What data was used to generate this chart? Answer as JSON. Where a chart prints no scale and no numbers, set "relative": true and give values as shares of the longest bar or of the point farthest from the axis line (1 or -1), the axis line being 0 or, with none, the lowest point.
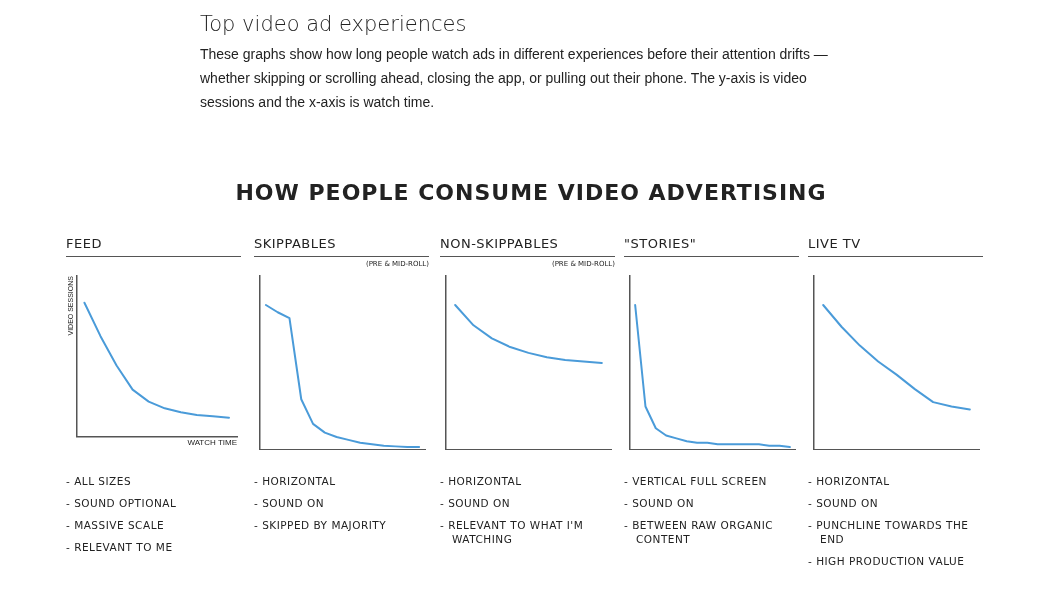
{
  "chart_data": [
    {
      "type": "other",
      "title": "Top video ad experiences",
      "subtitle": "These graphs show how long people watch ads in different experiences before their attention drifts —whether skipping or scrolling ahead, closing the app, or pulling out their phone. The y-axis is video sessions and the x-axis is watch time.",
      "annotations": [
        "HOW PEOPLE CONSUME VIDEO ADVERTISING"
      ]
    },
    {
      "type": "line",
      "title": "FEED",
      "xlabel": "WATCH TIME",
      "ylabel": "VIDEO SESSIONS",
      "relative": true,
      "marker": "none",
      "categories": [
        null,
        null,
        null,
        null,
        null,
        null,
        null,
        null,
        null,
        null
      ],
      "series": [
        {
          "color": "#4a9bd9",
          "values": [
            1,
            0.75,
            0.53,
            0.35,
            0.26,
            0.21,
            0.18,
            0.16,
            0.15,
            0.14
          ]
        }
      ],
      "annotations": [
        "- ALL SIZES",
        "- SOUND OPTIONAL",
        "- MASSIVE SCALE",
        "- RELEVANT TO ME"
      ]
    },
    {
      "type": "line",
      "title": "SKIPPABLES",
      "subtitle": "(PRE & MID-ROLL)",
      "relative": true,
      "marker": "none",
      "categories": [
        null,
        null,
        null,
        null,
        null,
        null,
        null,
        null,
        null,
        null,
        null,
        null,
        null,
        null
      ],
      "series": [
        {
          "color": "#4a9bd9",
          "values": [
            1,
            0.95,
            0.91,
            0.35,
            0.18,
            0.12,
            0.09,
            0.07,
            0.05,
            0.04,
            0.03,
            0.025,
            0.02,
            0.02
          ]
        }
      ],
      "annotations": [
        "- HORIZONTAL",
        "- SOUND ON",
        "- SKIPPED BY MAJORITY"
      ]
    },
    {
      "type": "line",
      "title": "NON-SKIPPABLES",
      "subtitle": "(PRE & MID-ROLL)",
      "relative": true,
      "marker": "none",
      "categories": [
        null,
        null,
        null,
        null,
        null,
        null,
        null,
        null,
        null
      ],
      "series": [
        {
          "color": "#4a9bd9",
          "values": [
            1,
            0.86,
            0.77,
            0.71,
            0.67,
            0.64,
            0.62,
            0.61,
            0.6
          ]
        }
      ],
      "annotations": [
        "- HORIZONTAL",
        "- SOUND ON",
        "- RELEVANT TO WHAT I'M WATCHING"
      ]
    },
    {
      "type": "line",
      "title": "\"STORIES\"",
      "relative": true,
      "marker": "none",
      "categories": [
        null,
        null,
        null,
        null,
        null,
        null,
        null,
        null,
        null,
        null,
        null,
        null,
        null,
        null,
        null,
        null
      ],
      "series": [
        {
          "color": "#4a9bd9",
          "values": [
            1,
            0.3,
            0.15,
            0.1,
            0.08,
            0.06,
            0.05,
            0.05,
            0.04,
            0.04,
            0.04,
            0.04,
            0.04,
            0.03,
            0.03,
            0.02
          ]
        }
      ],
      "annotations": [
        "- VERTICAL FULL SCREEN",
        "- SOUND ON",
        "- BETWEEN RAW ORGANIC CONTENT"
      ]
    },
    {
      "type": "line",
      "title": "LIVE TV",
      "relative": true,
      "marker": "none",
      "categories": [
        null,
        null,
        null,
        null,
        null,
        null,
        null,
        null,
        null
      ],
      "series": [
        {
          "color": "#4a9bd9",
          "values": [
            1,
            0.85,
            0.72,
            0.61,
            0.52,
            0.42,
            0.33,
            0.3,
            0.28
          ]
        }
      ],
      "annotations": [
        "- HORIZONTAL",
        "- SOUND ON",
        "- PUNCHLINE TOWARDS THE END",
        "- HIGH PRODUCTION VALUE"
      ]
    }
  ]
}
